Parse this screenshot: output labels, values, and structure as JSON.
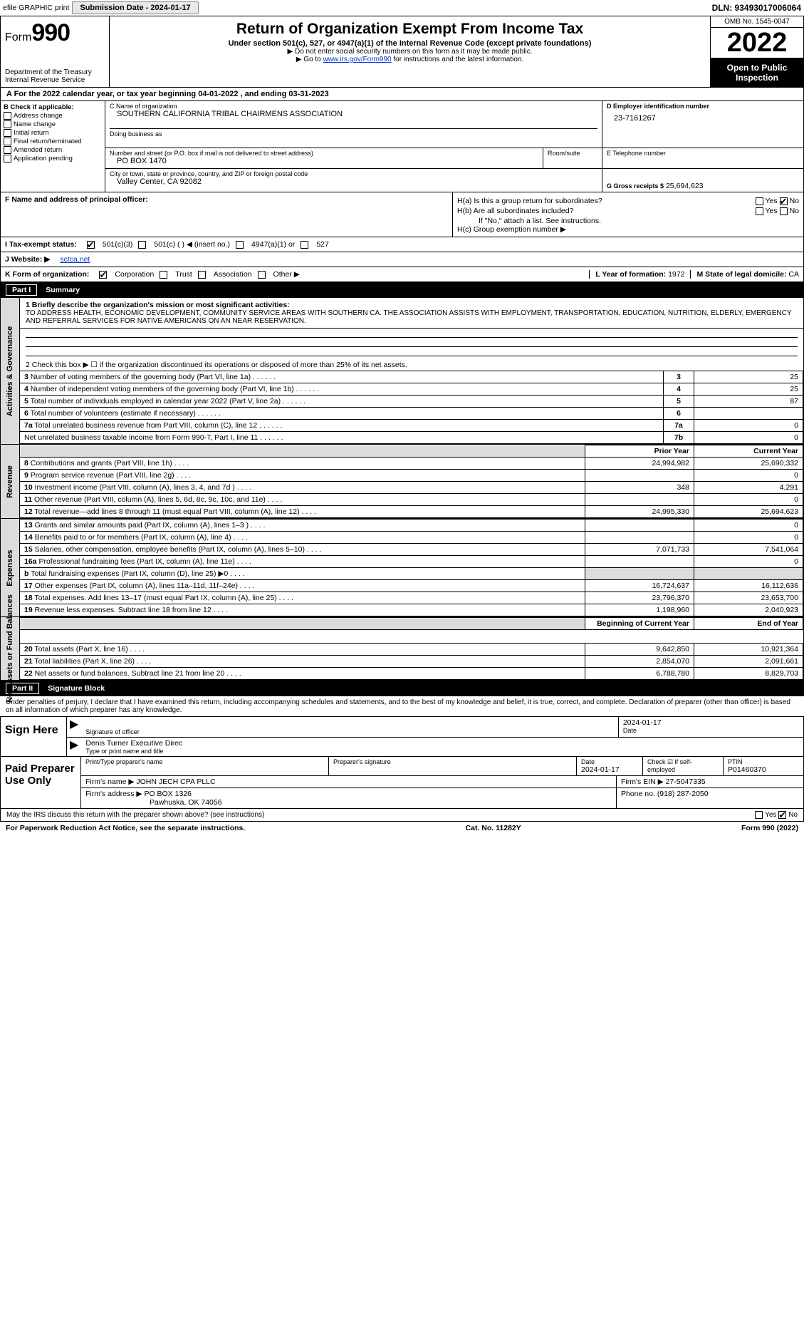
{
  "top": {
    "efile": "efile GRAPHIC print",
    "submission": "Submission Date - 2024-01-17",
    "dln": "DLN: 93493017006064"
  },
  "header": {
    "form_label": "Form",
    "form_num": "990",
    "title": "Return of Organization Exempt From Income Tax",
    "sub": "Under section 501(c), 527, or 4947(a)(1) of the Internal Revenue Code (except private foundations)",
    "note1": "▶ Do not enter social security numbers on this form as it may be made public.",
    "note2_pre": "▶ Go to ",
    "note2_link": "www.irs.gov/Form990",
    "note2_post": " for instructions and the latest information.",
    "dept": "Department of the Treasury",
    "irs": "Internal Revenue Service",
    "omb": "OMB No. 1545-0047",
    "year": "2022",
    "open": "Open to Public Inspection"
  },
  "a_line": "A For the 2022 calendar year, or tax year beginning 04-01-2022    , and ending 03-31-2023",
  "b": {
    "label": "B Check if applicable:",
    "items": [
      "Address change",
      "Name change",
      "Initial return",
      "Final return/terminated",
      "Amended return",
      "Application pending"
    ]
  },
  "c": {
    "name_lbl": "C Name of organization",
    "name": "SOUTHERN CALIFORNIA TRIBAL CHAIRMENS ASSOCIATION",
    "dba_lbl": "Doing business as",
    "addr_lbl": "Number and street (or P.O. box if mail is not delivered to street address)",
    "room_lbl": "Room/suite",
    "addr": "PO BOX 1470",
    "city_lbl": "City or town, state or province, country, and ZIP or foreign postal code",
    "city": "Valley Center, CA  92082"
  },
  "d": {
    "ein_lbl": "D Employer identification number",
    "ein": "23-7161267",
    "tel_lbl": "E Telephone number",
    "gross_lbl": "G Gross receipts $",
    "gross": "25,694,623"
  },
  "f": {
    "lbl": "F  Name and address of principal officer:"
  },
  "h": {
    "a": "H(a)  Is this a group return for subordinates?",
    "b": "H(b)  Are all subordinates included?",
    "b_note": "If \"No,\" attach a list. See instructions.",
    "c": "H(c)  Group exemption number ▶",
    "yes": "Yes",
    "no": "No"
  },
  "i": {
    "lbl": "I   Tax-exempt status:",
    "o1": "501(c)(3)",
    "o2": "501(c) (   ) ◀ (insert no.)",
    "o3": "4947(a)(1) or",
    "o4": "527"
  },
  "j": {
    "lbl": "J   Website: ▶",
    "val": "sctca.net"
  },
  "k": {
    "lbl": "K Form of organization:",
    "o1": "Corporation",
    "o2": "Trust",
    "o3": "Association",
    "o4": "Other ▶",
    "l_lbl": "L Year of formation:",
    "l_val": "1972",
    "m_lbl": "M State of legal domicile:",
    "m_val": "CA"
  },
  "part1": {
    "title": "Part I",
    "name": "Summary",
    "side1": "Activities & Governance",
    "side2": "Revenue",
    "side3": "Expenses",
    "side4": "Net Assets or Fund Balances",
    "l1_lbl": "1 Briefly describe the organization's mission or most significant activities:",
    "l1_text": "TO ADDRESS HEALTH, ECONOMIC DEVELOPMENT, COMMUNITY SERVICE AREAS WITH SOUTHERN CA. THE ASSOCIATION ASSISTS WITH EMPLOYMENT, TRANSPORTATION, EDUCATION, NUTRITION, ELDERLY, EMERGENCY AND REFERRAL SERVICES FOR NATIVE AMERICANS ON AN NEAR RESERVATION.",
    "l2": "2  Check this box ▶ ☐  if the organization discontinued its operations or disposed of more than 25% of its net assets.",
    "rows_a": [
      {
        "n": "3",
        "d": "Number of voting members of the governing body (Part VI, line 1a)",
        "ln": "3",
        "v": "25"
      },
      {
        "n": "4",
        "d": "Number of independent voting members of the governing body (Part VI, line 1b)",
        "ln": "4",
        "v": "25"
      },
      {
        "n": "5",
        "d": "Total number of individuals employed in calendar year 2022 (Part V, line 2a)",
        "ln": "5",
        "v": "87"
      },
      {
        "n": "6",
        "d": "Total number of volunteers (estimate if necessary)",
        "ln": "6",
        "v": ""
      },
      {
        "n": "7a",
        "d": "Total unrelated business revenue from Part VIII, column (C), line 12",
        "ln": "7a",
        "v": "0"
      },
      {
        "n": "",
        "d": "Net unrelated business taxable income from Form 990-T, Part I, line 11",
        "ln": "7b",
        "v": "0"
      }
    ],
    "col_prior": "Prior Year",
    "col_current": "Current Year",
    "rows_rev": [
      {
        "n": "8",
        "d": "Contributions and grants (Part VIII, line 1h)",
        "p": "24,994,982",
        "c": "25,690,332"
      },
      {
        "n": "9",
        "d": "Program service revenue (Part VIII, line 2g)",
        "p": "",
        "c": "0"
      },
      {
        "n": "10",
        "d": "Investment income (Part VIII, column (A), lines 3, 4, and 7d )",
        "p": "348",
        "c": "4,291"
      },
      {
        "n": "11",
        "d": "Other revenue (Part VIII, column (A), lines 5, 6d, 8c, 9c, 10c, and 11e)",
        "p": "",
        "c": "0"
      },
      {
        "n": "12",
        "d": "Total revenue—add lines 8 through 11 (must equal Part VIII, column (A), line 12)",
        "p": "24,995,330",
        "c": "25,694,623"
      }
    ],
    "rows_exp": [
      {
        "n": "13",
        "d": "Grants and similar amounts paid (Part IX, column (A), lines 1–3 )",
        "p": "",
        "c": "0"
      },
      {
        "n": "14",
        "d": "Benefits paid to or for members (Part IX, column (A), line 4)",
        "p": "",
        "c": "0"
      },
      {
        "n": "15",
        "d": "Salaries, other compensation, employee benefits (Part IX, column (A), lines 5–10)",
        "p": "7,071,733",
        "c": "7,541,064"
      },
      {
        "n": "16a",
        "d": "Professional fundraising fees (Part IX, column (A), line 11e)",
        "p": "",
        "c": "0"
      },
      {
        "n": "b",
        "d": "Total fundraising expenses (Part IX, column (D), line 25) ▶0",
        "p": "GRAY",
        "c": "GRAY"
      },
      {
        "n": "17",
        "d": "Other expenses (Part IX, column (A), lines 11a–11d, 11f–24e)",
        "p": "16,724,637",
        "c": "16,112,636"
      },
      {
        "n": "18",
        "d": "Total expenses. Add lines 13–17 (must equal Part IX, column (A), line 25)",
        "p": "23,796,370",
        "c": "23,653,700"
      },
      {
        "n": "19",
        "d": "Revenue less expenses. Subtract line 18 from line 12",
        "p": "1,198,960",
        "c": "2,040,923"
      }
    ],
    "col_begin": "Beginning of Current Year",
    "col_end": "End of Year",
    "rows_net": [
      {
        "n": "20",
        "d": "Total assets (Part X, line 16)",
        "p": "9,642,850",
        "c": "10,921,364"
      },
      {
        "n": "21",
        "d": "Total liabilities (Part X, line 26)",
        "p": "2,854,070",
        "c": "2,091,661"
      },
      {
        "n": "22",
        "d": "Net assets or fund balances. Subtract line 21 from line 20",
        "p": "6,788,780",
        "c": "8,829,703"
      }
    ]
  },
  "part2": {
    "title": "Part II",
    "name": "Signature Block",
    "text": "Under penalties of perjury, I declare that I have examined this return, including accompanying schedules and statements, and to the best of my knowledge and belief, it is true, correct, and complete. Declaration of preparer (other than officer) is based on all information of which preparer has any knowledge.",
    "sign_here": "Sign Here",
    "sig_date": "2024-01-17",
    "sig_of_officer": "Signature of officer",
    "date_lbl": "Date",
    "officer_name": "Denis Turner Executive Direc",
    "type_name": "Type or print name and title",
    "paid": "Paid Preparer Use Only",
    "p_name_lbl": "Print/Type preparer's name",
    "p_sig_lbl": "Preparer's signature",
    "p_date_lbl": "Date",
    "p_date": "2024-01-17",
    "p_check_lbl": "Check ☑ if self-employed",
    "ptin_lbl": "PTIN",
    "ptin": "P01460370",
    "firm_name_lbl": "Firm's name    ▶",
    "firm_name": "JOHN JECH CPA PLLC",
    "firm_ein_lbl": "Firm's EIN ▶",
    "firm_ein": "27-5047335",
    "firm_addr_lbl": "Firm's address ▶",
    "firm_addr1": "PO BOX 1326",
    "firm_addr2": "Pawhuska, OK  74056",
    "phone_lbl": "Phone no.",
    "phone": "(918) 287-2050",
    "discuss": "May the IRS discuss this return with the preparer shown above? (see instructions)",
    "footer1": "For Paperwork Reduction Act Notice, see the separate instructions.",
    "footer2": "Cat. No. 11282Y",
    "footer3": "Form 990 (2022)"
  }
}
